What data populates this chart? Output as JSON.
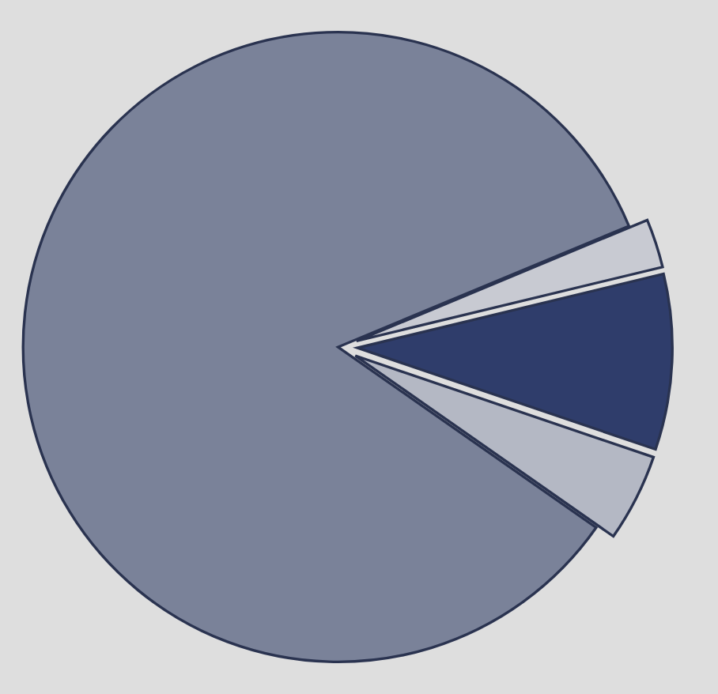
{
  "chart_data": {
    "type": "pie",
    "categories": [
      null,
      null,
      null,
      null
    ],
    "values": [
      4.5,
      9,
      2.5,
      84
    ],
    "colors": [
      "#b4b8c4",
      "#2f3d6b",
      "#c8cad2",
      "#7a8299"
    ]
  }
}
